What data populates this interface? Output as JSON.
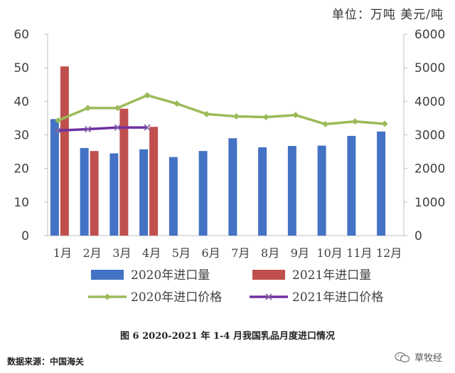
{
  "unit_label": "单位：万吨  美元/吨",
  "caption": "图 6    2020-2021 年 1-4 月我国乳品月度进口情况",
  "source": "数据来源：中国海关",
  "brand": "草牧经",
  "chart_data": {
    "type": "bar",
    "categories": [
      "1月",
      "2月",
      "3月",
      "4月",
      "5月",
      "6月",
      "7月",
      "8月",
      "9月",
      "10月",
      "11月",
      "12月"
    ],
    "ylim_left": [
      0,
      60
    ],
    "ylim_right": [
      0,
      6000
    ],
    "left_ticks": [
      "0",
      "10",
      "20",
      "30",
      "40",
      "50",
      "60"
    ],
    "right_ticks": [
      "0",
      "1000",
      "2000",
      "3000",
      "4000",
      "5000",
      "6000"
    ],
    "series": [
      {
        "name": "2020年进口量",
        "kind": "bar",
        "axis": "left",
        "color": "#4472C4",
        "values": [
          34.7,
          26.1,
          24.5,
          25.7,
          23.4,
          25.2,
          29.0,
          26.3,
          26.7,
          26.8,
          29.7,
          31.0
        ]
      },
      {
        "name": "2021年进口量",
        "kind": "bar",
        "axis": "left",
        "color": "#C0504D",
        "values": [
          50.4,
          25.2,
          37.8,
          32.4,
          null,
          null,
          null,
          null,
          null,
          null,
          null,
          null
        ]
      },
      {
        "name": "2020年进口价格",
        "kind": "line",
        "axis": "right",
        "color": "#9BBB59",
        "marker": "diamond",
        "values": [
          3430,
          3800,
          3800,
          4180,
          3930,
          3620,
          3550,
          3530,
          3590,
          3320,
          3400,
          3330
        ]
      },
      {
        "name": "2021年进口价格",
        "kind": "line",
        "axis": "right",
        "color": "#7030A0",
        "marker": "x",
        "values": [
          3130,
          3170,
          3220,
          3220,
          null,
          null,
          null,
          null,
          null,
          null,
          null,
          null
        ]
      }
    ]
  }
}
